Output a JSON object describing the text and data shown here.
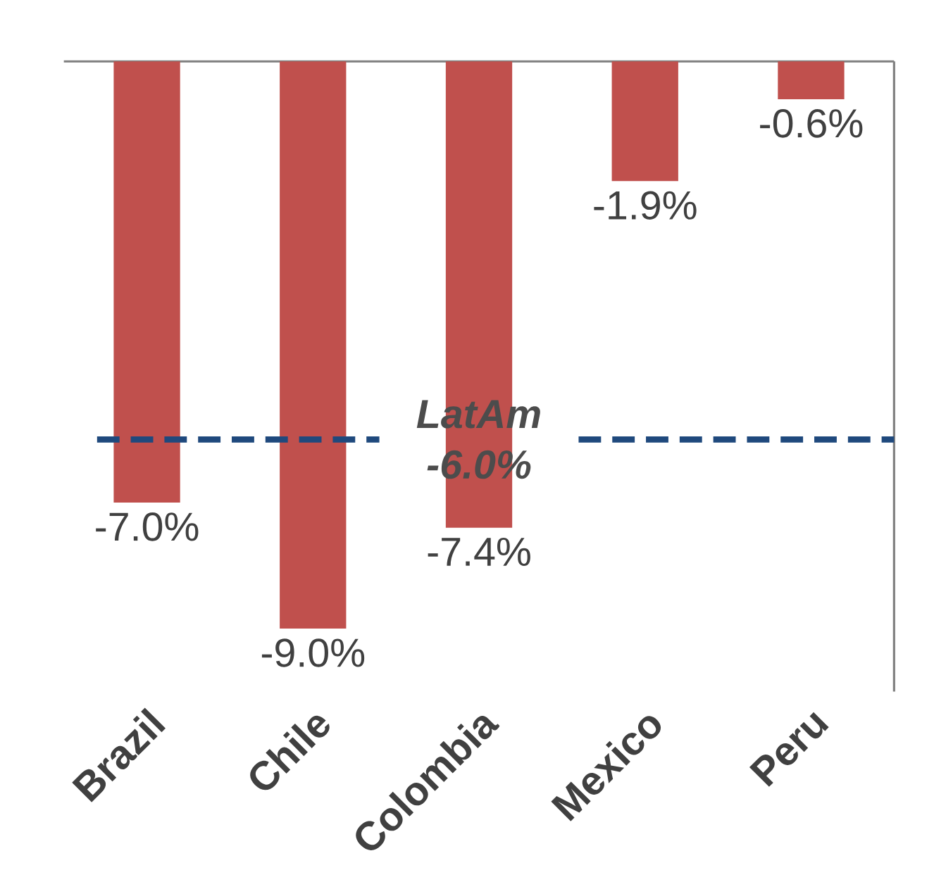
{
  "chart_data": {
    "type": "bar",
    "categories": [
      "Brazil",
      "Chile",
      "Colombia",
      "Mexico",
      "Peru"
    ],
    "values": [
      -7.0,
      -9.0,
      -7.4,
      -1.9,
      -0.6
    ],
    "value_labels": [
      "-7.0%",
      "-9.0%",
      "-7.4%",
      "-1.9%",
      "-0.6%"
    ],
    "color": "#c0504d",
    "ylim": [
      -10,
      0
    ],
    "tick_labels": "x",
    "ref_lines": [
      {
        "axis": "y",
        "value": -6.0,
        "label": "LatAm -6.0%",
        "color": "#1f497d",
        "line_style": "dashed"
      }
    ]
  }
}
